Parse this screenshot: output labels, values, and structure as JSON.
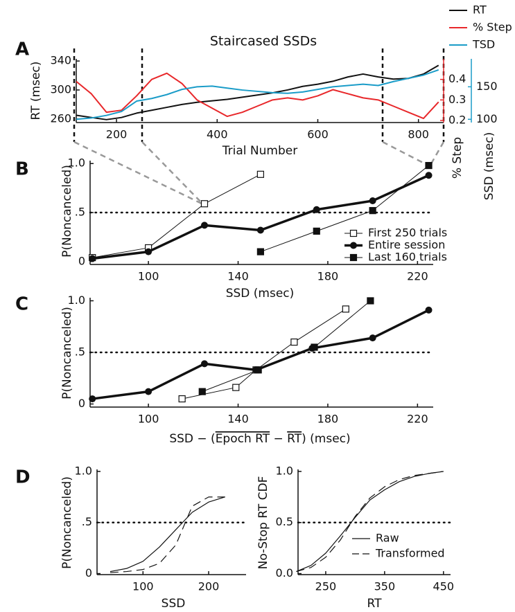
{
  "chart_data": [
    {
      "type": "line",
      "panel": "A",
      "title": "Staircased SSDs",
      "xlabel": "Trial Number",
      "ylabel": "RT (msec)",
      "y2label": "% Step",
      "y3label": "SSD (msec)",
      "legend": "upper right outside",
      "x": [
        120,
        150,
        180,
        210,
        240,
        270,
        300,
        330,
        360,
        390,
        420,
        450,
        480,
        510,
        540,
        570,
        600,
        630,
        660,
        690,
        720,
        750,
        780,
        810,
        840
      ],
      "xlim": [
        120,
        850
      ],
      "xticks": [
        200,
        400,
        600,
        800
      ],
      "ylim": [
        255,
        343
      ],
      "yticks": [
        260,
        300,
        340
      ],
      "y2lim": [
        0.19,
        0.5
      ],
      "y2ticks": [
        0.2,
        0.3,
        0.4
      ],
      "y3lim": [
        95,
        193
      ],
      "y3ticks": [
        100,
        150
      ],
      "series": [
        {
          "name": "RT",
          "color": "#111111",
          "axis": "y",
          "linewidth": 2,
          "values": [
            265,
            262,
            259,
            262,
            268,
            272,
            276,
            280,
            283,
            285,
            287,
            290,
            293,
            296,
            300,
            305,
            308,
            312,
            318,
            322,
            318,
            315,
            316,
            322,
            334
          ]
        },
        {
          "name": "% Step",
          "color": "#e8272a",
          "axis": "y2",
          "linewidth": 2,
          "values": [
            0.39,
            0.33,
            0.24,
            0.25,
            0.32,
            0.4,
            0.43,
            0.38,
            0.3,
            0.26,
            0.22,
            0.24,
            0.27,
            0.3,
            0.31,
            0.3,
            0.32,
            0.35,
            0.33,
            0.31,
            0.3,
            0.27,
            0.24,
            0.21,
            0.29
          ]
        },
        {
          "name": "TSD",
          "color": "#1a9cc8",
          "axis": "y3",
          "linewidth": 2,
          "values": [
            100,
            102,
            106,
            112,
            128,
            132,
            138,
            146,
            150,
            151,
            148,
            145,
            143,
            141,
            140,
            142,
            146,
            150,
            152,
            154,
            152,
            158,
            163,
            168,
            176
          ]
        }
      ]
    },
    {
      "type": "line",
      "panel": "B",
      "xlabel": "SSD (msec)",
      "ylabel": "P(Noncanceled)",
      "legend": "lower right",
      "xlim": [
        74,
        227
      ],
      "xticks": [
        100,
        140,
        180,
        220
      ],
      "ylim": [
        -0.03,
        1.03
      ],
      "yticks": [
        0,
        {
          "value": 0.5,
          "label": ".5"
        },
        {
          "value": 1,
          "label": "1.0"
        }
      ],
      "reference_line": 0.5,
      "series": [
        {
          "name": "First 250 trials",
          "color": "#111111",
          "marker": "open-square",
          "linewidth": 1,
          "x": [
            75,
            100,
            125,
            150
          ],
          "values": [
            0.04,
            0.14,
            0.59,
            0.89
          ]
        },
        {
          "name": "Entire session",
          "color": "#111111",
          "marker": "circle",
          "linewidth": 3.5,
          "x": [
            75,
            100,
            125,
            150,
            175,
            200,
            225
          ],
          "values": [
            0.03,
            0.1,
            0.37,
            0.32,
            0.53,
            0.62,
            0.88
          ]
        },
        {
          "name": "Last 160 trials",
          "color": "#111111",
          "marker": "square",
          "linewidth": 1,
          "x": [
            150,
            175,
            200,
            225
          ],
          "values": [
            0.1,
            0.31,
            0.52,
            0.98
          ]
        }
      ]
    },
    {
      "type": "line",
      "panel": "C",
      "xlabel": [
        "SSD − (",
        "Epoch RT",
        " − ",
        "RT",
        ") (msec)"
      ],
      "xlabel_overline": [
        false,
        true,
        false,
        true,
        false
      ],
      "ylabel": "P(Noncanceled)",
      "xlim": [
        74,
        227
      ],
      "xticks": [
        100,
        140,
        180,
        220
      ],
      "ylim": [
        -0.03,
        1.03
      ],
      "yticks": [
        0,
        {
          "value": 0.5,
          "label": ".5"
        },
        {
          "value": 1,
          "label": "1.0"
        }
      ],
      "reference_line": 0.5,
      "series": [
        {
          "color": "#111111",
          "marker": "open-square",
          "linewidth": 1,
          "x": [
            115,
            139,
            148,
            165,
            188
          ],
          "values": [
            0.05,
            0.16,
            0.33,
            0.6,
            0.92
          ]
        },
        {
          "color": "#111111",
          "marker": "circle",
          "linewidth": 3.5,
          "x": [
            75,
            100,
            125,
            148,
            173,
            200,
            225
          ],
          "values": [
            0.05,
            0.12,
            0.39,
            0.33,
            0.54,
            0.64,
            0.91
          ]
        },
        {
          "color": "#111111",
          "marker": "square",
          "linewidth": 1,
          "x": [
            124,
            149,
            174,
            199
          ],
          "values": [
            0.12,
            0.33,
            0.55,
            1.0
          ]
        }
      ]
    },
    {
      "type": "line",
      "panel": "D",
      "xlabel": "SSD",
      "ylabel": "P(Noncanceled)",
      "xlim": [
        30,
        257
      ],
      "xticks": [
        100,
        200
      ],
      "ylim": [
        -0.01,
        1.02
      ],
      "yticks": [
        0,
        {
          "value": 0.5,
          "label": ".5"
        },
        {
          "value": 1,
          "label": "1.0"
        }
      ],
      "reference_line": 0.5,
      "x": [
        50,
        75,
        100,
        125,
        150,
        175,
        200,
        225
      ],
      "series": [
        {
          "color": "#111111",
          "linewidth": 1.2,
          "dash": "solid",
          "values": [
            0.02,
            0.05,
            0.12,
            0.26,
            0.43,
            0.6,
            0.7,
            0.75
          ]
        },
        {
          "color": "#111111",
          "linewidth": 1.2,
          "dash": "dashed",
          "values": [
            0.01,
            0.02,
            0.04,
            0.1,
            0.28,
            0.66,
            0.75,
            0.75
          ]
        }
      ]
    },
    {
      "type": "line",
      "xlabel": "RT",
      "ylabel": "No-Stop RT CDF",
      "legend": "lower right",
      "xlim": [
        203,
        462
      ],
      "xticks": [
        250,
        350,
        450
      ],
      "ylim": [
        -0.01,
        1.02
      ],
      "yticks": [
        {
          "value": 0,
          "label": "0.0"
        },
        0.5,
        {
          "value": 1,
          "label": "1.0"
        }
      ],
      "reference_line": 0.5,
      "x": [
        200,
        225,
        250,
        275,
        300,
        325,
        350,
        375,
        400,
        425,
        450
      ],
      "series": [
        {
          "name": "Raw",
          "color": "#111111",
          "linewidth": 1.2,
          "dash": "solid",
          "values": [
            0.02,
            0.08,
            0.2,
            0.37,
            0.55,
            0.72,
            0.82,
            0.9,
            0.95,
            0.98,
            1.0
          ]
        },
        {
          "name": "Transformed",
          "color": "#111111",
          "linewidth": 1.2,
          "dash": "dashed",
          "values": [
            0.02,
            0.06,
            0.16,
            0.33,
            0.56,
            0.74,
            0.85,
            0.92,
            0.96,
            0.98,
            1.0
          ]
        }
      ]
    }
  ]
}
